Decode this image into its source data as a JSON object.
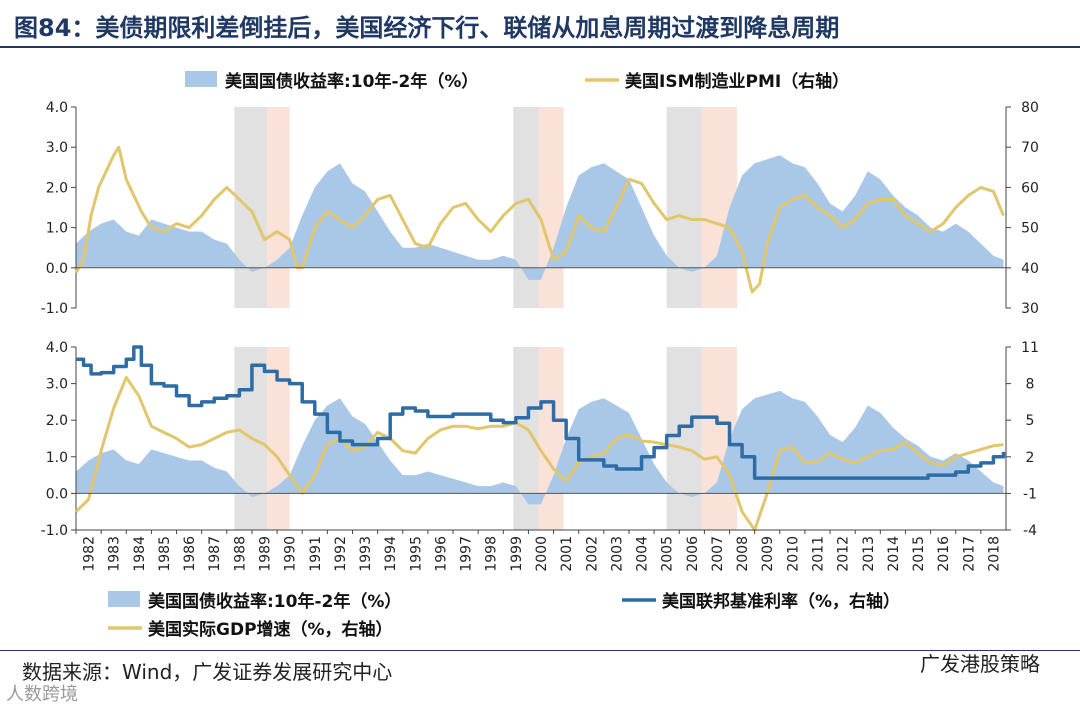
{
  "title": "图84：美债期限利差倒挂后，美国经济下行、联储从加息周期过渡到降息周期",
  "source": "数据来源：Wind，广发证券发展研究中心",
  "watermark_right": "广发港股策略",
  "watermark_left": "人数跨境",
  "colors": {
    "spread_area": "#a9c8e8",
    "pmi_line": "#e1c66b",
    "fed_line": "#2e6ca6",
    "gdp_line": "#e1c66b",
    "shade_gray": "#d9d9d9",
    "shade_pink": "#fadbcf",
    "title": "#1f3864"
  },
  "chart_data": [
    {
      "type": "area+line",
      "position": "top",
      "legend": [
        "美国国债收益率:10年-2年（%）",
        "美国ISM制造业PMI（右轴）"
      ],
      "left_axis": {
        "ylim": [
          -1.0,
          4.0
        ],
        "ticks": [
          "4.0",
          "3.0",
          "2.0",
          "1.0",
          "0.0",
          "-1.0"
        ],
        "tick_values": [
          4,
          3,
          2,
          1,
          0,
          -1
        ]
      },
      "right_axis": {
        "ylim": [
          30,
          80
        ],
        "ticks": [
          "80",
          "70",
          "60",
          "50",
          "40",
          "30"
        ],
        "tick_values": [
          80,
          70,
          60,
          50,
          40,
          30
        ]
      },
      "shaded_periods": [
        {
          "start": 1988.3,
          "end": 1989.6,
          "color": "gray"
        },
        {
          "start": 1989.6,
          "end": 1990.5,
          "color": "pink"
        },
        {
          "start": 1999.4,
          "end": 2000.4,
          "color": "gray"
        },
        {
          "start": 2000.4,
          "end": 2001.4,
          "color": "pink"
        },
        {
          "start": 2005.5,
          "end": 2006.9,
          "color": "gray"
        },
        {
          "start": 2006.9,
          "end": 2008.3,
          "color": "pink"
        }
      ],
      "series": [
        {
          "name": "美国国债收益率:10年-2年（%）",
          "axis": "left",
          "kind": "area",
          "x": [
            1982.0,
            1982.5,
            1983.0,
            1983.5,
            1984.0,
            1984.5,
            1985.0,
            1985.5,
            1986.0,
            1986.5,
            1987.0,
            1987.5,
            1988.0,
            1988.5,
            1989.0,
            1989.5,
            1990.0,
            1990.5,
            1991.0,
            1991.5,
            1992.0,
            1992.5,
            1993.0,
            1993.5,
            1994.0,
            1994.5,
            1995.0,
            1995.5,
            1996.0,
            1996.5,
            1997.0,
            1997.5,
            1998.0,
            1998.5,
            1999.0,
            1999.5,
            2000.0,
            2000.5,
            2001.0,
            2001.5,
            2002.0,
            2002.5,
            2003.0,
            2003.5,
            2004.0,
            2004.5,
            2005.0,
            2005.5,
            2006.0,
            2006.5,
            2007.0,
            2007.5,
            2008.0,
            2008.5,
            2009.0,
            2009.5,
            2010.0,
            2010.5,
            2011.0,
            2011.5,
            2012.0,
            2012.5,
            2013.0,
            2013.5,
            2014.0,
            2014.5,
            2015.0,
            2015.5,
            2016.0,
            2016.5,
            2017.0,
            2017.5,
            2018.0,
            2018.5,
            2018.9
          ],
          "values": [
            0.6,
            0.9,
            1.1,
            1.2,
            0.9,
            0.8,
            1.2,
            1.1,
            1.0,
            0.9,
            0.9,
            0.7,
            0.6,
            0.2,
            -0.1,
            0.0,
            0.2,
            0.5,
            1.3,
            2.0,
            2.4,
            2.6,
            2.1,
            1.9,
            1.4,
            0.9,
            0.5,
            0.5,
            0.6,
            0.5,
            0.4,
            0.3,
            0.2,
            0.2,
            0.3,
            0.2,
            -0.3,
            -0.3,
            0.5,
            1.5,
            2.3,
            2.5,
            2.6,
            2.4,
            2.2,
            1.5,
            0.8,
            0.3,
            0.0,
            -0.1,
            0.0,
            0.3,
            1.5,
            2.3,
            2.6,
            2.7,
            2.8,
            2.6,
            2.5,
            2.1,
            1.6,
            1.4,
            1.8,
            2.4,
            2.2,
            1.8,
            1.5,
            1.3,
            1.0,
            0.9,
            1.1,
            0.9,
            0.6,
            0.3,
            0.2
          ]
        },
        {
          "name": "美国ISM制造业PMI（右轴）",
          "axis": "right",
          "kind": "line",
          "x": [
            1982.0,
            1982.3,
            1982.6,
            1982.9,
            1983.2,
            1983.5,
            1983.7,
            1984.0,
            1984.3,
            1984.6,
            1985.0,
            1985.5,
            1986.0,
            1986.5,
            1987.0,
            1987.5,
            1988.0,
            1988.5,
            1989.0,
            1989.5,
            1990.0,
            1990.5,
            1990.8,
            1991.0,
            1991.5,
            1992.0,
            1992.5,
            1993.0,
            1993.5,
            1994.0,
            1994.5,
            1995.0,
            1995.5,
            1996.0,
            1996.5,
            1997.0,
            1997.5,
            1998.0,
            1998.5,
            1999.0,
            1999.5,
            2000.0,
            2000.5,
            2001.0,
            2001.5,
            2002.0,
            2002.5,
            2003.0,
            2003.5,
            2004.0,
            2004.5,
            2005.0,
            2005.5,
            2006.0,
            2006.5,
            2007.0,
            2007.5,
            2008.0,
            2008.5,
            2008.9,
            2009.2,
            2009.5,
            2010.0,
            2010.5,
            2011.0,
            2011.5,
            2012.0,
            2012.5,
            2013.0,
            2013.5,
            2014.0,
            2014.5,
            2015.0,
            2015.5,
            2016.0,
            2016.5,
            2017.0,
            2017.5,
            2018.0,
            2018.5,
            2018.9
          ],
          "values": [
            38.8,
            42,
            53,
            60,
            64,
            68,
            70,
            62,
            58,
            54,
            50,
            49,
            51,
            50,
            53,
            57,
            60,
            57,
            54,
            47,
            49,
            47,
            40,
            40,
            50,
            54,
            52,
            50,
            53,
            57,
            58,
            52,
            46,
            45,
            51,
            55,
            56,
            52,
            49,
            53,
            56,
            57,
            52,
            42,
            44,
            53,
            50,
            49,
            55,
            62,
            61,
            56,
            52,
            53,
            52,
            52,
            51,
            50,
            44,
            34,
            36,
            46,
            55,
            57,
            58,
            55,
            53,
            50,
            52,
            56,
            57,
            57,
            53,
            51,
            49,
            51,
            55,
            58,
            60,
            59,
            53
          ]
        }
      ]
    },
    {
      "type": "area+line",
      "position": "bottom",
      "legend": [
        "美国国债收益率:10年-2年（%）",
        "美国联邦基准利率（%，右轴）",
        "美国实际GDP增速（%，右轴）"
      ],
      "left_axis": {
        "ylim": [
          -1.0,
          4.0
        ],
        "ticks": [
          "4.0",
          "3.0",
          "2.0",
          "1.0",
          "0.0",
          "-1.0"
        ],
        "tick_values": [
          4,
          3,
          2,
          1,
          0,
          -1
        ]
      },
      "right_axis": {
        "ylim": [
          -4,
          11
        ],
        "ticks": [
          "11",
          "8",
          "5",
          "2",
          "-1",
          "-4"
        ],
        "tick_values": [
          11,
          8,
          5,
          2,
          -1,
          -4
        ]
      },
      "x_ticks": [
        "1982",
        "1983",
        "1984",
        "1985",
        "1986",
        "1987",
        "1988",
        "1989",
        "1990",
        "1991",
        "1992",
        "1993",
        "1994",
        "1995",
        "1996",
        "1997",
        "1998",
        "1999",
        "2000",
        "2001",
        "2002",
        "2003",
        "2004",
        "2005",
        "2006",
        "2007",
        "2008",
        "2009",
        "2010",
        "2011",
        "2012",
        "2013",
        "2014",
        "2015",
        "2016",
        "2017",
        "2018"
      ],
      "series": [
        {
          "name": "美国联邦基准利率（%，右轴）",
          "axis": "right",
          "kind": "step",
          "x": [
            1982.0,
            1982.3,
            1982.6,
            1983.0,
            1983.5,
            1984.0,
            1984.3,
            1984.6,
            1985.0,
            1985.5,
            1986.0,
            1986.5,
            1987.0,
            1987.5,
            1988.0,
            1988.5,
            1989.0,
            1989.5,
            1990.0,
            1990.5,
            1991.0,
            1991.5,
            1992.0,
            1992.5,
            1993.0,
            1993.5,
            1994.0,
            1994.5,
            1995.0,
            1995.5,
            1996.0,
            1996.5,
            1997.0,
            1997.5,
            1998.0,
            1998.5,
            1999.0,
            1999.5,
            2000.0,
            2000.5,
            2001.0,
            2001.5,
            2002.0,
            2002.5,
            2003.0,
            2003.5,
            2004.0,
            2004.5,
            2005.0,
            2005.5,
            2006.0,
            2006.5,
            2007.0,
            2007.5,
            2008.0,
            2008.5,
            2009.0,
            2010.0,
            2011.0,
            2012.0,
            2013.0,
            2014.0,
            2015.0,
            2015.9,
            2016.5,
            2017.0,
            2017.5,
            2018.0,
            2018.5,
            2018.9
          ],
          "values": [
            10.0,
            9.5,
            8.8,
            8.9,
            9.4,
            10.0,
            11.0,
            9.5,
            8.0,
            7.8,
            7.0,
            6.2,
            6.5,
            6.8,
            7.0,
            7.5,
            9.5,
            9.0,
            8.3,
            8.0,
            6.5,
            5.5,
            4.0,
            3.3,
            3.0,
            3.0,
            3.5,
            5.5,
            6.0,
            5.75,
            5.3,
            5.3,
            5.5,
            5.5,
            5.5,
            5.0,
            4.8,
            5.2,
            6.0,
            6.5,
            5.0,
            3.5,
            1.75,
            1.75,
            1.25,
            1.0,
            1.0,
            2.0,
            2.75,
            3.75,
            4.5,
            5.25,
            5.25,
            4.75,
            3.0,
            2.0,
            0.25,
            0.25,
            0.25,
            0.25,
            0.25,
            0.25,
            0.25,
            0.5,
            0.5,
            0.75,
            1.25,
            1.5,
            2.0,
            2.4
          ]
        },
        {
          "name": "美国实际GDP增速（%，右轴）",
          "axis": "right",
          "kind": "line",
          "x": [
            1982.0,
            1982.5,
            1983.0,
            1983.5,
            1984.0,
            1984.5,
            1985.0,
            1985.5,
            1986.0,
            1986.5,
            1987.0,
            1987.5,
            1988.0,
            1988.5,
            1989.0,
            1989.5,
            1990.0,
            1990.5,
            1991.0,
            1991.5,
            1992.0,
            1992.5,
            1993.0,
            1993.5,
            1994.0,
            1994.5,
            1995.0,
            1995.5,
            1996.0,
            1996.5,
            1997.0,
            1997.5,
            1998.0,
            1998.5,
            1999.0,
            1999.5,
            2000.0,
            2000.5,
            2001.0,
            2001.5,
            2002.0,
            2002.5,
            2003.0,
            2003.5,
            2004.0,
            2004.5,
            2005.0,
            2005.5,
            2006.0,
            2006.5,
            2007.0,
            2007.5,
            2008.0,
            2008.5,
            2009.0,
            2009.5,
            2010.0,
            2010.5,
            2011.0,
            2011.5,
            2012.0,
            2012.5,
            2013.0,
            2013.5,
            2014.0,
            2014.5,
            2015.0,
            2015.5,
            2016.0,
            2016.5,
            2017.0,
            2017.5,
            2018.0,
            2018.5,
            2018.9
          ],
          "values": [
            -2.5,
            -1.5,
            2.5,
            6.0,
            8.5,
            7.0,
            4.5,
            4.0,
            3.5,
            2.8,
            3.0,
            3.5,
            4.0,
            4.2,
            3.5,
            3.0,
            2.0,
            0.5,
            -1.0,
            0.5,
            3.0,
            3.5,
            2.5,
            2.8,
            4.0,
            3.5,
            2.5,
            2.3,
            3.5,
            4.2,
            4.5,
            4.5,
            4.3,
            4.5,
            4.5,
            4.8,
            4.2,
            2.5,
            1.0,
            0.0,
            1.5,
            2.0,
            2.3,
            3.5,
            3.8,
            3.3,
            3.2,
            3.0,
            2.8,
            2.5,
            1.8,
            2.0,
            0.5,
            -2.5,
            -4.0,
            -1.0,
            2.5,
            2.8,
            1.5,
            1.6,
            2.3,
            1.8,
            1.5,
            2.0,
            2.5,
            2.6,
            3.2,
            2.3,
            1.5,
            1.3,
            2.0,
            2.3,
            2.6,
            2.9,
            3.0
          ]
        },
        {
          "name": "美国国债收益率:10年-2年（%）",
          "axis": "left",
          "kind": "area",
          "same_as": "top.spread"
        }
      ]
    }
  ]
}
